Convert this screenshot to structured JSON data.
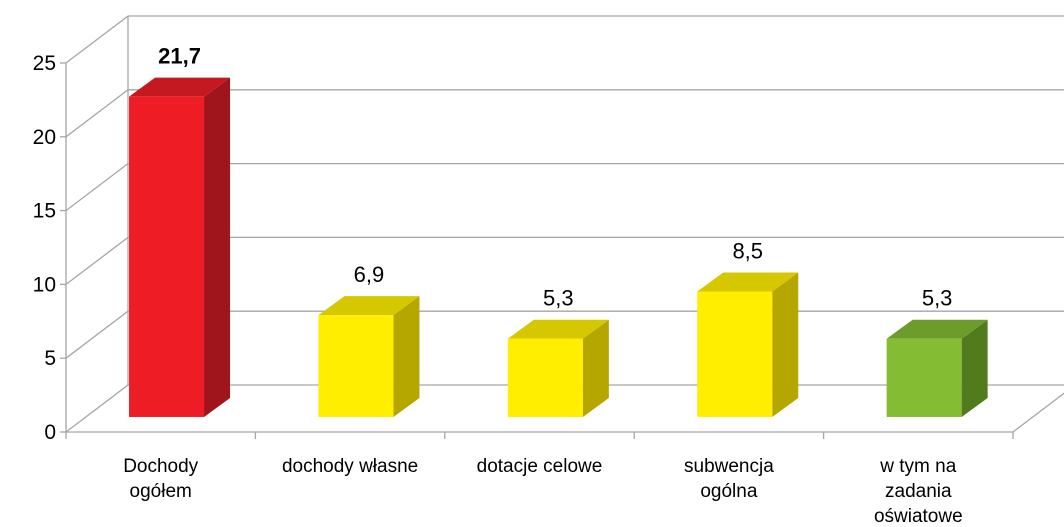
{
  "chart_data": {
    "type": "bar",
    "title": "",
    "xlabel": "",
    "ylabel": "",
    "ylim": [
      0,
      25
    ],
    "yticks": [
      "0",
      "5",
      "10",
      "15",
      "20",
      "25"
    ],
    "grid": true,
    "categories": [
      [
        "Dochody",
        "ogółem"
      ],
      [
        "dochody własne"
      ],
      [
        "dotacje celowe"
      ],
      [
        "subwencja",
        "ogólna"
      ],
      [
        "w tym na",
        "zadania",
        "oświatowe"
      ]
    ],
    "values": [
      21.7,
      6.9,
      5.3,
      8.5,
      5.3
    ],
    "value_labels": [
      "21,7",
      "6,9",
      "5,3",
      "8,5",
      "5,3"
    ],
    "bar_colors": [
      {
        "front": "#ee1c25",
        "side": "#a0141b",
        "top": "#c41920",
        "label_bold": true
      },
      {
        "front": "#ffee00",
        "side": "#b5a600",
        "top": "#d6c800",
        "label_bold": false
      },
      {
        "front": "#ffee00",
        "side": "#b5a600",
        "top": "#d6c800",
        "label_bold": false
      },
      {
        "front": "#ffee00",
        "side": "#b5a600",
        "top": "#d6c800",
        "label_bold": false
      },
      {
        "front": "#84bc34",
        "side": "#527b1e",
        "top": "#6e9c2a",
        "label_bold": false
      }
    ],
    "grid_color": "#a6a6a6"
  }
}
